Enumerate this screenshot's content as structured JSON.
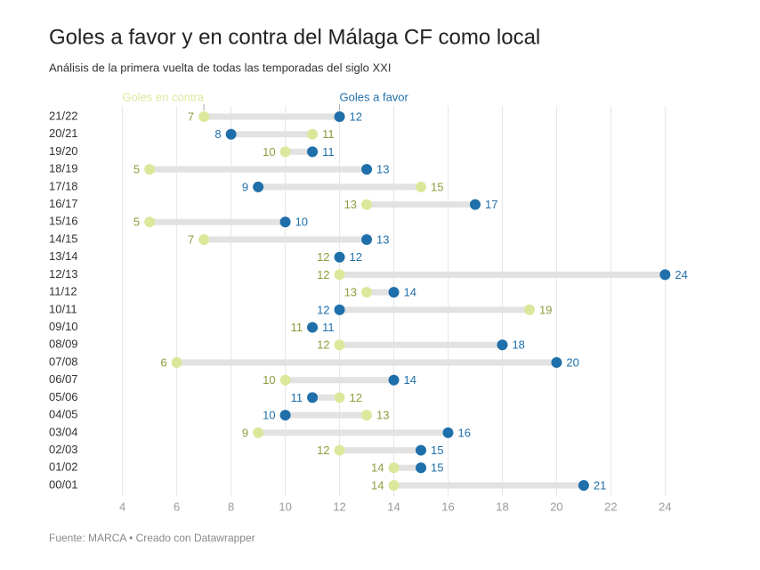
{
  "chart_data": {
    "type": "dot",
    "title": "Goles a favor y en contra del Málaga CF como local",
    "subtitle": "Análisis de la primera vuelta de todas las temporadas del siglo XXI",
    "source": "Fuente: MARCA • Creado con Datawrapper",
    "categories": [
      "21/22",
      "20/21",
      "19/20",
      "18/19",
      "17/18",
      "16/17",
      "15/16",
      "14/15",
      "13/14",
      "12/13",
      "11/12",
      "10/11",
      "09/10",
      "08/09",
      "07/08",
      "06/07",
      "05/06",
      "04/05",
      "03/04",
      "02/03",
      "01/02",
      "00/01"
    ],
    "series": [
      {
        "name": "Goles en contra",
        "color": "#dbe89c",
        "label_color": "#8d9b3c",
        "values": [
          7,
          11,
          10,
          5,
          15,
          13,
          5,
          7,
          12,
          12,
          13,
          19,
          11,
          12,
          6,
          10,
          12,
          13,
          9,
          12,
          14,
          14
        ]
      },
      {
        "name": "Goles a favor",
        "color": "#1f6faa",
        "label_color": "#1f6faa",
        "values": [
          12,
          8,
          11,
          13,
          9,
          17,
          10,
          13,
          12,
          24,
          14,
          12,
          11,
          18,
          20,
          14,
          11,
          10,
          16,
          15,
          15,
          21
        ]
      }
    ],
    "xlim": [
      2.6,
      25.3
    ],
    "xticks": [
      4,
      6,
      8,
      10,
      12,
      14,
      16,
      18,
      20,
      22,
      24
    ],
    "grid": true
  }
}
